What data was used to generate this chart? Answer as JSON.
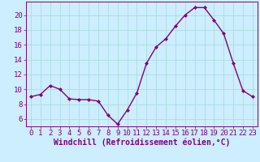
{
  "x": [
    0,
    1,
    2,
    3,
    4,
    5,
    6,
    7,
    8,
    9,
    10,
    11,
    12,
    13,
    14,
    15,
    16,
    17,
    18,
    19,
    20,
    21,
    22,
    23
  ],
  "y": [
    9.0,
    9.3,
    10.5,
    10.0,
    8.7,
    8.6,
    8.6,
    8.4,
    6.5,
    5.3,
    7.2,
    9.5,
    13.5,
    15.7,
    16.8,
    18.5,
    20.0,
    21.0,
    21.0,
    19.3,
    17.5,
    13.5,
    9.8,
    9.0
  ],
  "line_color": "#800080",
  "marker": "D",
  "marker_size": 2,
  "bg_color": "#cceeff",
  "grid_color": "#aadddd",
  "xlabel": "Windchill (Refroidissement éolien,°C)",
  "xlim": [
    -0.5,
    23.5
  ],
  "ylim": [
    5.0,
    21.8
  ],
  "yticks": [
    6,
    8,
    10,
    12,
    14,
    16,
    18,
    20
  ],
  "xticks": [
    0,
    1,
    2,
    3,
    4,
    5,
    6,
    7,
    8,
    9,
    10,
    11,
    12,
    13,
    14,
    15,
    16,
    17,
    18,
    19,
    20,
    21,
    22,
    23
  ],
  "font_color": "#800080",
  "tick_fontsize": 6.5,
  "label_fontsize": 7.0,
  "linewidth": 1.0
}
